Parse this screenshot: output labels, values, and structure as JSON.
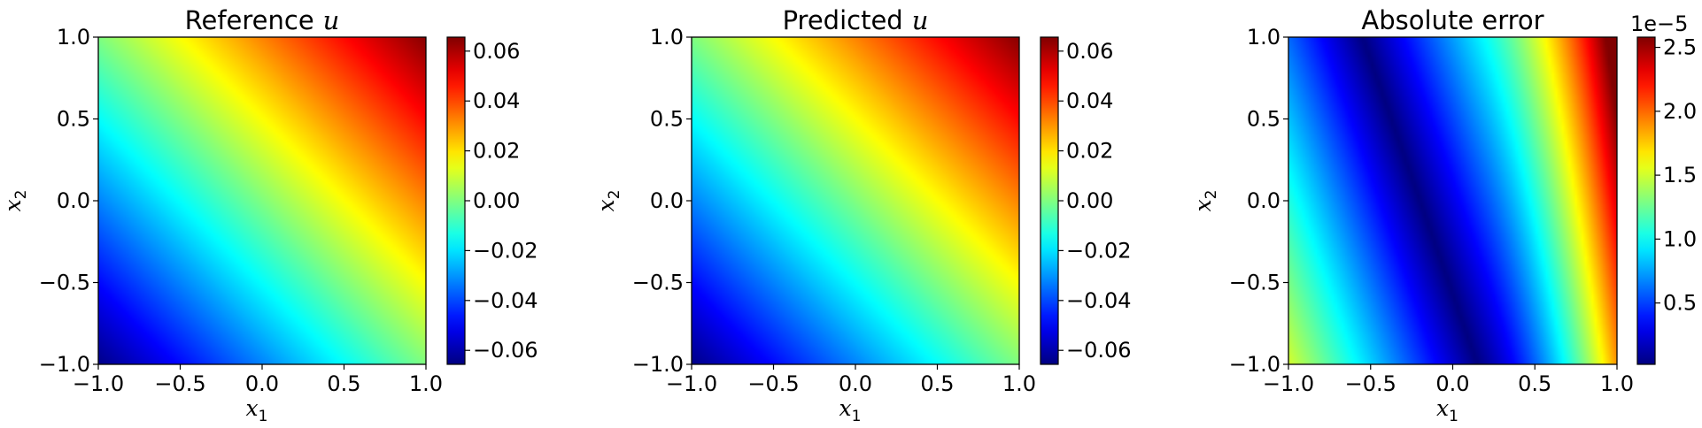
{
  "chart_data": [
    {
      "type": "heatmap",
      "title": "Reference",
      "title_var": "u",
      "xlabel_var": "x",
      "xlabel_sub": "1",
      "ylabel_var": "x",
      "ylabel_sub": "2",
      "xlim": [
        -1.0,
        1.0
      ],
      "ylim": [
        -1.0,
        1.0
      ],
      "xticks": [
        "−1.0",
        "−0.5",
        "0.0",
        "0.5",
        "1.0"
      ],
      "yticks": [
        "−1.0",
        "−0.5",
        "0.0",
        "0.5",
        "1.0"
      ],
      "colormap": "jet",
      "field": "u = 0.0323*(x1+x2) + 0.00005*x1",
      "colorbar": {
        "range": [
          -0.0656,
          0.0656
        ],
        "ticks": [
          -0.06,
          -0.04,
          -0.02,
          0.0,
          0.02,
          0.04,
          0.06
        ],
        "tick_labels": [
          "−0.06",
          "−0.04",
          "−0.02",
          "0.00",
          "0.02",
          "0.04",
          "0.06"
        ],
        "offset_text": ""
      }
    },
    {
      "type": "heatmap",
      "title": "Predicted",
      "title_var": "u",
      "xlabel_var": "x",
      "xlabel_sub": "1",
      "ylabel_var": "x",
      "ylabel_sub": "2",
      "xlim": [
        -1.0,
        1.0
      ],
      "ylim": [
        -1.0,
        1.0
      ],
      "xticks": [
        "−1.0",
        "−0.5",
        "0.0",
        "0.5",
        "1.0"
      ],
      "yticks": [
        "−1.0",
        "−0.5",
        "0.0",
        "0.5",
        "1.0"
      ],
      "colormap": "jet",
      "field": "u = 0.0323*(x1+x2) + 0.00005*x1",
      "colorbar": {
        "range": [
          -0.0656,
          0.0656
        ],
        "ticks": [
          -0.06,
          -0.04,
          -0.02,
          0.0,
          0.02,
          0.04,
          0.06
        ],
        "tick_labels": [
          "−0.06",
          "−0.04",
          "−0.02",
          "0.00",
          "0.02",
          "0.04",
          "0.06"
        ],
        "offset_text": ""
      }
    },
    {
      "type": "heatmap",
      "title": "Absolute error",
      "title_var": "",
      "xlabel_var": "x",
      "xlabel_sub": "1",
      "ylabel_var": "x",
      "ylabel_sub": "2",
      "xlim": [
        -1.0,
        1.0
      ],
      "ylim": [
        -1.0,
        1.0
      ],
      "xticks": [
        "−1.0",
        "−0.5",
        "0.0",
        "0.5",
        "1.0"
      ],
      "yticks": [
        "−1.0",
        "−0.5",
        "0.0",
        "0.5",
        "1.0"
      ],
      "colormap": "jet",
      "field": "|err| in units of 1e-5: ~0 along valley x1 ≈ -0.2 - 0.35*x2, rising to ~2.5 at x1 = 1 and ~2.3 at corner (-1,-1)",
      "colorbar": {
        "range": [
          0.02,
          2.58
        ],
        "ticks": [
          0.5,
          1.0,
          1.5,
          2.0,
          2.5
        ],
        "tick_labels": [
          "0.5",
          "1.0",
          "1.5",
          "2.0",
          "2.5"
        ],
        "offset_text": "1e−5"
      }
    }
  ]
}
